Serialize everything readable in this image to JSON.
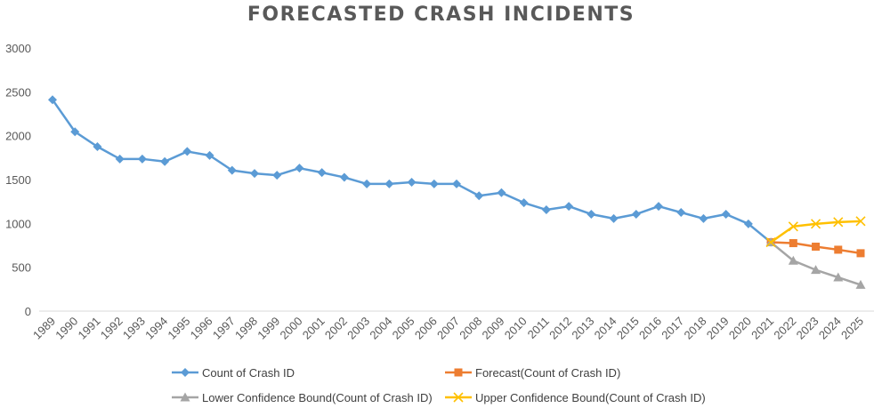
{
  "chart_data": {
    "type": "line",
    "title": "FORECASTED CRASH INCIDENTS",
    "xlabel": "",
    "ylabel": "",
    "ylim": [
      0,
      3000
    ],
    "yticks": [
      0,
      500,
      1000,
      1500,
      2000,
      2500,
      3000
    ],
    "grid": false,
    "legend_position": "bottom",
    "categories": [
      "1989",
      "1990",
      "1991",
      "1992",
      "1993",
      "1994",
      "1995",
      "1996",
      "1997",
      "1998",
      "1999",
      "2000",
      "2001",
      "2002",
      "2003",
      "2004",
      "2005",
      "2006",
      "2007",
      "2008",
      "2009",
      "2010",
      "2011",
      "2012",
      "2013",
      "2014",
      "2015",
      "2016",
      "2017",
      "2018",
      "2019",
      "2020",
      "2021",
      "2022",
      "2023",
      "2024",
      "2025"
    ],
    "series": [
      {
        "name": "Count of Crash ID",
        "color": "#5B9BD5",
        "marker": "diamond",
        "values": [
          2410,
          2045,
          1875,
          1735,
          1735,
          1705,
          1820,
          1775,
          1605,
          1570,
          1550,
          1630,
          1580,
          1525,
          1450,
          1450,
          1470,
          1450,
          1450,
          1315,
          1350,
          1235,
          1155,
          1195,
          1105,
          1055,
          1105,
          1195,
          1125,
          1055,
          1105,
          995,
          785,
          null,
          null,
          null,
          null
        ]
      },
      {
        "name": "Forecast(Count of Crash ID)",
        "color": "#ED7D31",
        "marker": "square",
        "values": [
          null,
          null,
          null,
          null,
          null,
          null,
          null,
          null,
          null,
          null,
          null,
          null,
          null,
          null,
          null,
          null,
          null,
          null,
          null,
          null,
          null,
          null,
          null,
          null,
          null,
          null,
          null,
          null,
          null,
          null,
          null,
          null,
          785,
          775,
          735,
          700,
          660
        ]
      },
      {
        "name": "Lower Confidence Bound(Count of Crash ID)",
        "color": "#A5A5A5",
        "marker": "triangle",
        "values": [
          null,
          null,
          null,
          null,
          null,
          null,
          null,
          null,
          null,
          null,
          null,
          null,
          null,
          null,
          null,
          null,
          null,
          null,
          null,
          null,
          null,
          null,
          null,
          null,
          null,
          null,
          null,
          null,
          null,
          null,
          null,
          null,
          785,
          575,
          470,
          385,
          300
        ]
      },
      {
        "name": "Upper Confidence Bound(Count of Crash ID)",
        "color": "#FFC000",
        "marker": "x",
        "values": [
          null,
          null,
          null,
          null,
          null,
          null,
          null,
          null,
          null,
          null,
          null,
          null,
          null,
          null,
          null,
          null,
          null,
          null,
          null,
          null,
          null,
          null,
          null,
          null,
          null,
          null,
          null,
          null,
          null,
          null,
          null,
          null,
          785,
          965,
          995,
          1015,
          1025
        ]
      }
    ]
  }
}
